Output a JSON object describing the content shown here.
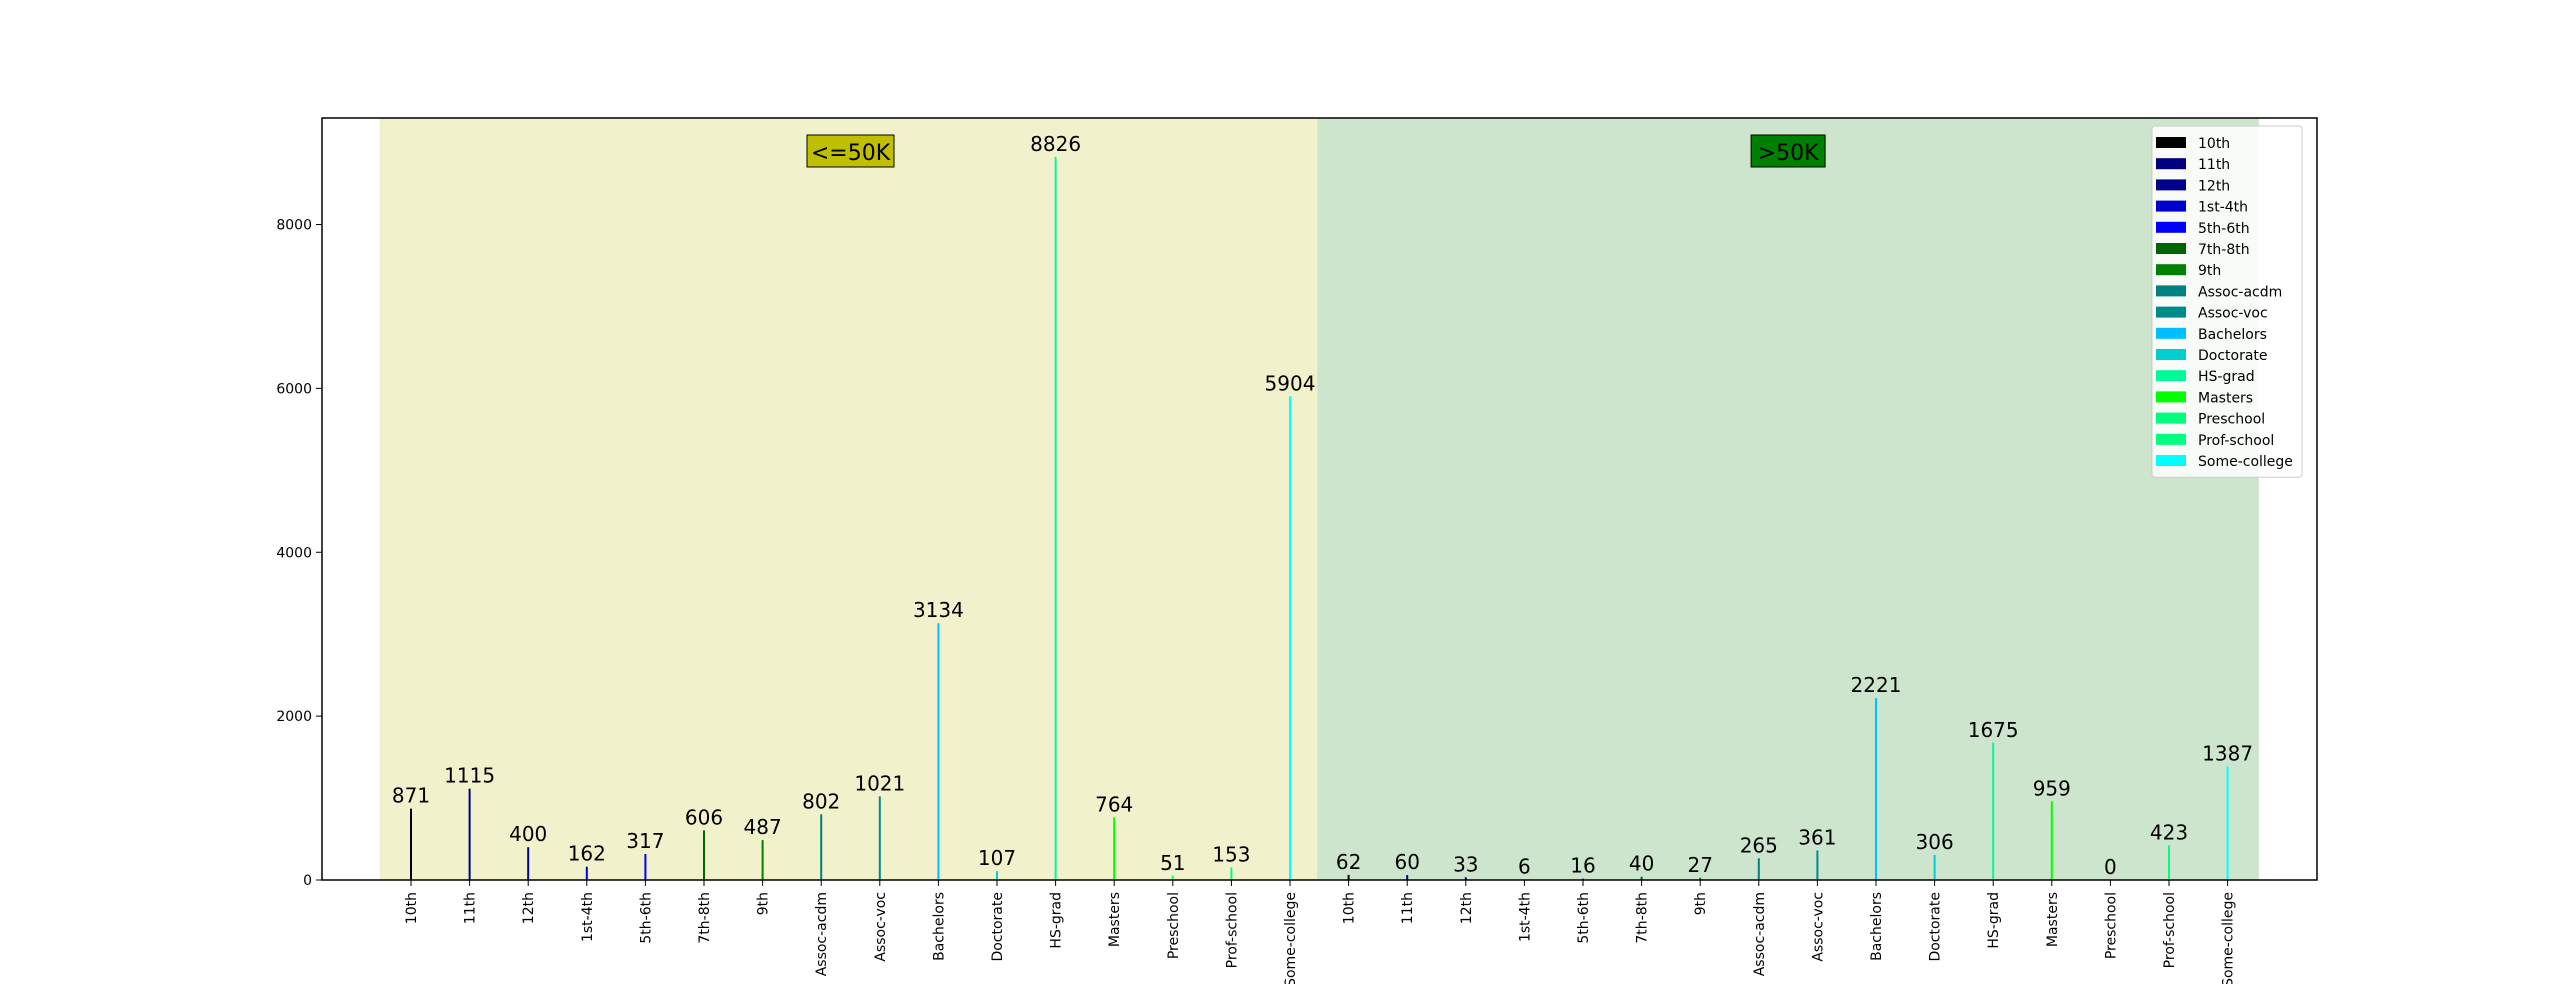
{
  "chart_data": {
    "type": "bar",
    "title": "",
    "xlabel": "",
    "ylabel": "",
    "ylim": [
      0,
      9300
    ],
    "yticks": [
      0,
      2000,
      4000,
      6000,
      8000
    ],
    "grid": false,
    "legend_position": "top-right",
    "categories": [
      "10th",
      "11th",
      "12th",
      "1st-4th",
      "5th-6th",
      "7th-8th",
      "9th",
      "Assoc-acdm",
      "Assoc-voc",
      "Bachelors",
      "Doctorate",
      "HS-grad",
      "Masters",
      "Preschool",
      "Prof-school",
      "Some-college"
    ],
    "colors": [
      "#000000",
      "#000080",
      "#00008b",
      "#0000cd",
      "#0000ff",
      "#006400",
      "#008000",
      "#008080",
      "#008b8b",
      "#00bfff",
      "#00ced1",
      "#00fa9a",
      "#00ff00",
      "#00ff7f",
      "#00ff7f",
      "#00ffff"
    ],
    "groups": [
      {
        "label": "<=50K",
        "background": "#f1f2cb",
        "label_box_color": "#bfbf00",
        "values": [
          871,
          1115,
          400,
          162,
          317,
          606,
          487,
          802,
          1021,
          3134,
          107,
          8826,
          764,
          51,
          153,
          5904
        ]
      },
      {
        "label": ">50K",
        "background": "#cde5cc",
        "label_box_color": "#008000",
        "values": [
          62,
          60,
          33,
          6,
          16,
          40,
          27,
          265,
          361,
          2221,
          306,
          1675,
          959,
          0,
          423,
          1387
        ]
      }
    ]
  }
}
